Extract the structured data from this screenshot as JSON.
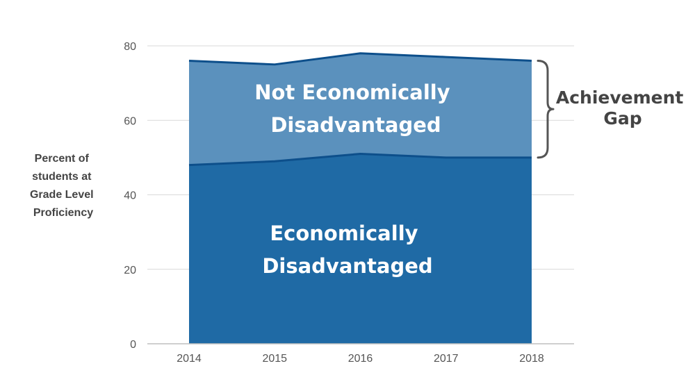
{
  "chart_data": {
    "type": "area",
    "x": [
      2014,
      2015,
      2016,
      2017,
      2018
    ],
    "xticks": [
      "2014",
      "2015",
      "2016",
      "2017",
      "2018"
    ],
    "yticks": [
      "0",
      "20",
      "40",
      "60",
      "80"
    ],
    "ylim": [
      0,
      80
    ],
    "grid": true,
    "ylabel": [
      "Percent of",
      "students at",
      "Grade Level",
      "Proficiency"
    ],
    "series": [
      {
        "name": [
          "Not Economically",
          "Disadvantaged"
        ],
        "values": [
          76,
          75,
          78,
          77,
          76
        ],
        "color": "#5b91bd",
        "line_color": "#0d4f8b"
      },
      {
        "name": [
          "Economically",
          "Disadvantaged"
        ],
        "values": [
          48,
          49,
          51,
          50,
          50
        ],
        "color": "#1f6aa5",
        "line_color": "#0d4f8b"
      }
    ],
    "annotation": {
      "label": [
        "Achievement",
        "Gap"
      ],
      "bracket_color": "#555555"
    }
  }
}
